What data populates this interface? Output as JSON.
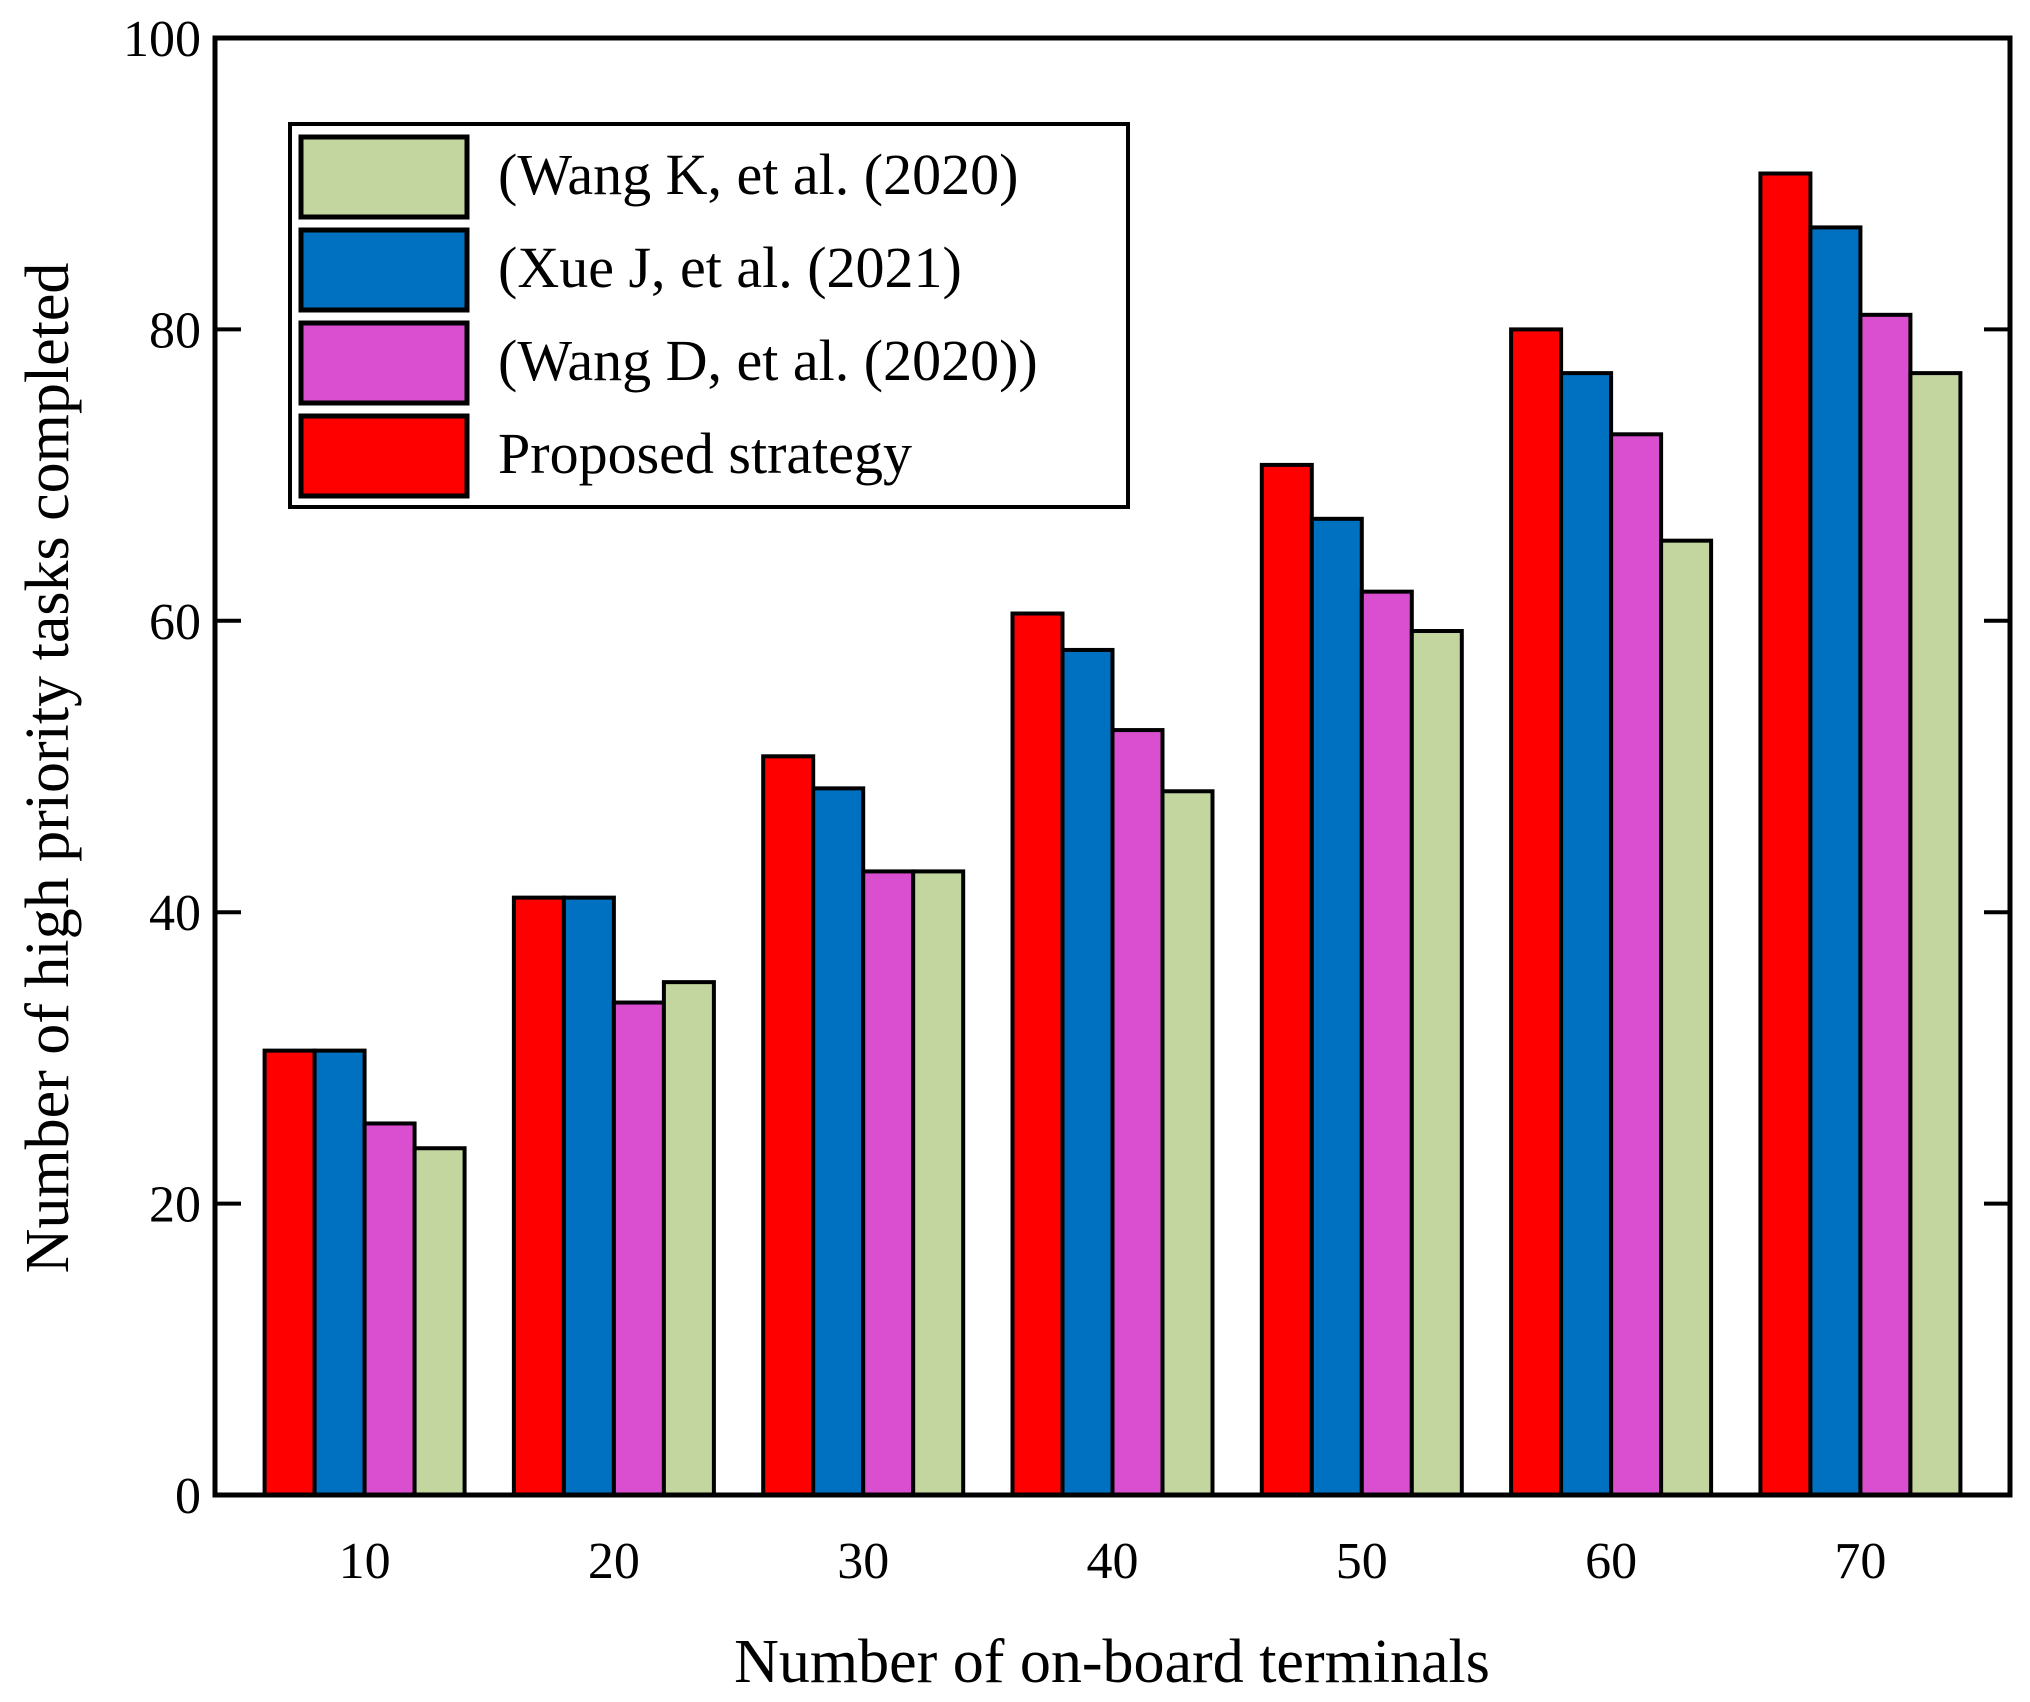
{
  "chart_data": {
    "type": "bar",
    "title": "",
    "xlabel": "Number of on-board terminals",
    "ylabel": "Number of high priority tasks completed",
    "categories": [
      "10",
      "20",
      "30",
      "40",
      "50",
      "60",
      "70"
    ],
    "ylim": [
      0,
      100
    ],
    "yticks": [
      "0",
      "20",
      "40",
      "60",
      "80",
      "100"
    ],
    "ytick_values": [
      0,
      20,
      40,
      60,
      80,
      100
    ],
    "series": [
      {
        "name": "Proposed strategy",
        "color": "#ff0000",
        "values": [
          30.5,
          41,
          50.7,
          60.5,
          70.7,
          80,
          90.7
        ]
      },
      {
        "name": "(Xue J, et al. (2021)",
        "color": "#0070c0",
        "values": [
          30.5,
          41,
          48.5,
          58,
          67,
          77,
          87
        ]
      },
      {
        "name": "(Wang D, et al. (2020))",
        "color": "#d94fcf",
        "values": [
          25.5,
          33.8,
          42.8,
          52.5,
          62,
          72.8,
          81
        ]
      },
      {
        "name": "(Wang K, et al. (2020)",
        "color": "#c4d6a0",
        "values": [
          23.8,
          35.2,
          42.8,
          48.3,
          59.3,
          65.5,
          77
        ]
      }
    ],
    "legend": {
      "placement": "top-left",
      "order": [
        "(Wang K, et al. (2020)",
        "(Xue J, et al. (2021)",
        "(Wang D, et al. (2020))",
        "Proposed strategy"
      ]
    }
  }
}
